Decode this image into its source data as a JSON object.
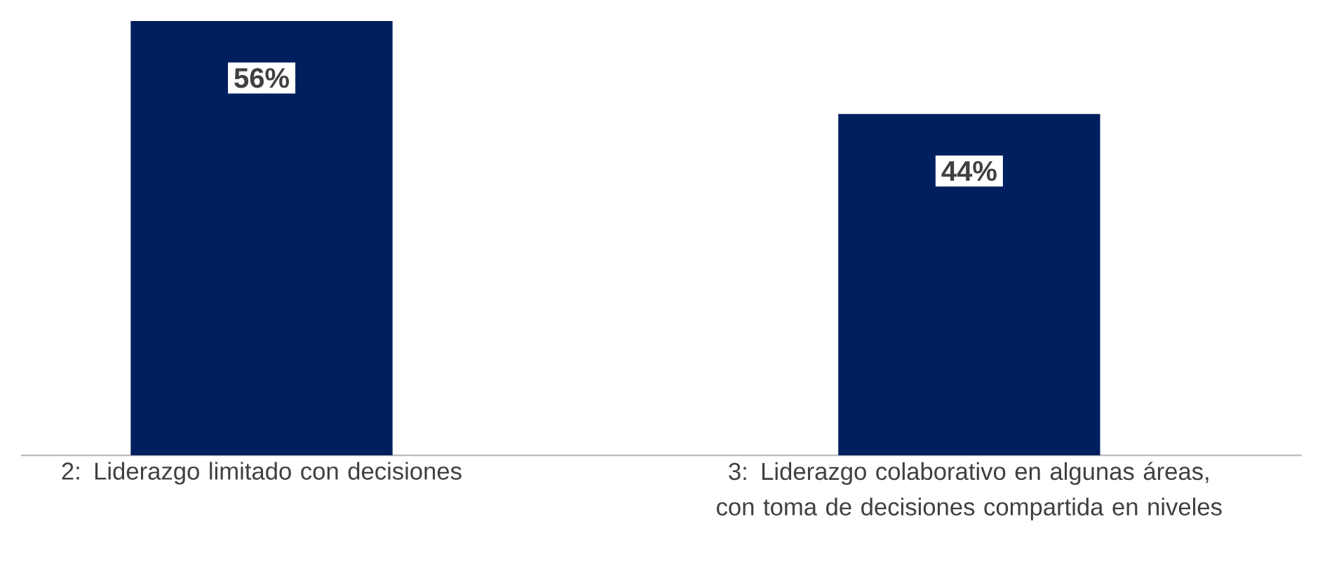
{
  "chart_data": {
    "type": "bar",
    "categories": [
      "2: Liderazgo limitado con decisiones",
      "3: Liderazgo colaborativo en algunas áreas, con toma de decisiones compartida en niveles"
    ],
    "values": [
      56,
      44
    ],
    "value_labels": [
      "56%",
      "44%"
    ],
    "color": "#001f5f"
  }
}
